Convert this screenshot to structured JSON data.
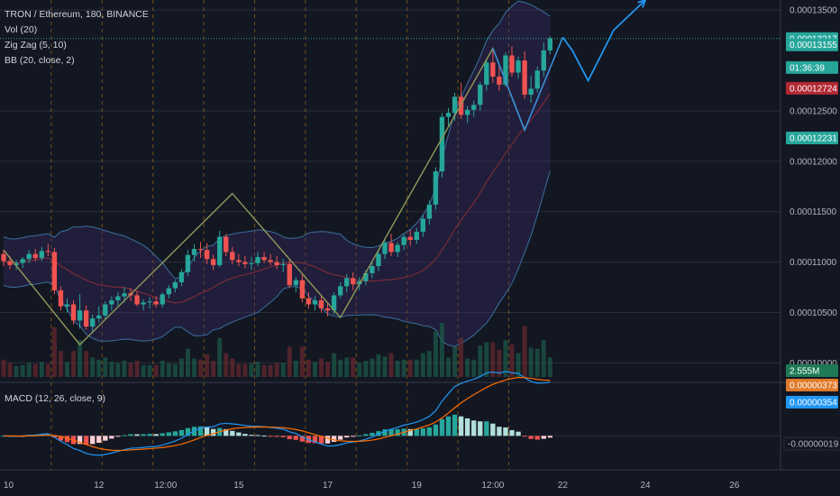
{
  "chart_data": [
    {
      "type": "candlestick",
      "title": "TRON / Ethereum, 180, BINANCE",
      "indicators": [
        "Vol (20)",
        "Zig Zag (5, 10)",
        "BB (20, close, 2)"
      ],
      "x_tick_labels": [
        "10",
        "12",
        "12:00",
        "15",
        "17",
        "19",
        "12:00",
        "22",
        "24",
        "26"
      ],
      "y_tick_labels": [
        "0.00013500",
        "0.00012500",
        "0.00012000",
        "0.00011500",
        "0.00011000",
        "0.00010500",
        "0.00010000"
      ],
      "y_ticks": [
        0.000135,
        0.000125,
        0.00012,
        0.000115,
        0.00011,
        0.000105,
        0.0001
      ],
      "ylim": [
        9.86e-05,
        0.000136
      ],
      "price_badges": [
        {
          "text": "0.00013217",
          "value": 0.00013217,
          "color": "#26a69a"
        },
        {
          "text": "0.00013155",
          "value": 0.00013155,
          "color": "#26a69a"
        },
        {
          "text": "01:36:39",
          "value": 0.0001293,
          "color": "#26a69a"
        },
        {
          "text": "0.00012724",
          "value": 0.00012724,
          "color": "#b22833"
        },
        {
          "text": "0.00012231",
          "value": 0.00012231,
          "color": "#26a69a"
        }
      ],
      "volume_badge": "2.555M",
      "last_price": 0.00013217,
      "candles_ohlc": [
        [
          0.0001108,
          0.0001112,
          0.0001096,
          0.0001101
        ],
        [
          0.0001101,
          0.0001106,
          0.0001093,
          0.0001097
        ],
        [
          0.0001097,
          0.0001102,
          0.0001092,
          0.0001099
        ],
        [
          0.0001099,
          0.0001105,
          0.0001094,
          0.0001103
        ],
        [
          0.0001103,
          0.0001112,
          0.0001099,
          0.0001108
        ],
        [
          0.0001108,
          0.0001113,
          0.0001101,
          0.0001104
        ],
        [
          0.0001104,
          0.0001115,
          0.0001101,
          0.0001111
        ],
        [
          0.0001111,
          0.0001118,
          0.0001106,
          0.000111
        ],
        [
          0.000111,
          0.0001114,
          0.0001068,
          0.0001072
        ],
        [
          0.0001072,
          0.0001076,
          0.0001052,
          0.0001056
        ],
        [
          0.0001056,
          0.0001064,
          0.000105,
          0.0001058
        ],
        [
          0.0001058,
          0.0001062,
          0.0001038,
          0.0001042
        ],
        [
          0.0001042,
          0.0001068,
          0.0001034,
          0.0001052
        ],
        [
          0.0001052,
          0.0001057,
          0.0001033,
          0.0001036
        ],
        [
          0.0001036,
          0.0001048,
          0.000103,
          0.0001044
        ],
        [
          0.0001044,
          0.0001056,
          0.000104,
          0.0001047
        ],
        [
          0.0001047,
          0.0001061,
          0.0001043,
          0.0001058
        ],
        [
          0.0001058,
          0.0001066,
          0.0001052,
          0.0001062
        ],
        [
          0.0001062,
          0.000107,
          0.0001057,
          0.0001066
        ],
        [
          0.0001066,
          0.0001075,
          0.000106,
          0.0001069
        ],
        [
          0.0001069,
          0.0001074,
          0.0001061,
          0.0001067
        ],
        [
          0.0001067,
          0.0001071,
          0.0001056,
          0.0001058
        ],
        [
          0.0001058,
          0.0001063,
          0.0001052,
          0.000106
        ],
        [
          0.000106,
          0.0001065,
          0.0001054,
          0.0001061
        ],
        [
          0.0001061,
          0.0001066,
          0.0001055,
          0.0001058
        ],
        [
          0.0001058,
          0.000107,
          0.0001055,
          0.0001068
        ],
        [
          0.0001068,
          0.0001077,
          0.0001064,
          0.0001074
        ],
        [
          0.0001074,
          0.0001082,
          0.000107,
          0.000108
        ],
        [
          0.000108,
          0.0001093,
          0.0001076,
          0.000109
        ],
        [
          0.000109,
          0.0001112,
          0.0001086,
          0.0001107
        ],
        [
          0.0001107,
          0.0001118,
          0.0001101,
          0.0001113
        ],
        [
          0.0001113,
          0.000112,
          0.0001104,
          0.0001112
        ],
        [
          0.0001112,
          0.0001119,
          0.0001098,
          0.0001103
        ],
        [
          0.0001103,
          0.0001107,
          0.0001092,
          0.0001097
        ],
        [
          0.0001097,
          0.0001131,
          0.0001095,
          0.0001125
        ],
        [
          0.0001125,
          0.0001128,
          0.0001106,
          0.000111
        ],
        [
          0.000111,
          0.0001115,
          0.0001098,
          0.0001102
        ],
        [
          0.0001102,
          0.0001108,
          0.0001096,
          0.00011
        ],
        [
          0.00011,
          0.0001106,
          0.0001094,
          0.0001098
        ],
        [
          0.0001098,
          0.0001105,
          0.0001092,
          0.0001099
        ],
        [
          0.0001099,
          0.000111,
          0.0001096,
          0.0001105
        ],
        [
          0.0001105,
          0.000111,
          0.0001099,
          0.0001102
        ],
        [
          0.0001102,
          0.0001108,
          0.0001097,
          0.00011
        ],
        [
          0.00011,
          0.0001106,
          0.0001093,
          0.0001097
        ],
        [
          0.0001097,
          0.0001103,
          0.000109,
          0.0001098
        ],
        [
          0.0001098,
          0.0001102,
          0.0001074,
          0.0001077
        ],
        [
          0.0001077,
          0.0001085,
          0.000107,
          0.0001082
        ],
        [
          0.0001082,
          0.0001088,
          0.000106,
          0.0001064
        ],
        [
          0.0001064,
          0.000107,
          0.0001054,
          0.0001058
        ],
        [
          0.0001058,
          0.0001066,
          0.0001052,
          0.0001062
        ],
        [
          0.0001062,
          0.0001067,
          0.000105,
          0.0001054
        ],
        [
          0.0001054,
          0.000106,
          0.0001046,
          0.0001052
        ],
        [
          0.0001052,
          0.000107,
          0.0001048,
          0.0001067
        ],
        [
          0.0001067,
          0.000108,
          0.0001064,
          0.0001076
        ],
        [
          0.0001076,
          0.0001088,
          0.000107,
          0.0001084
        ],
        [
          0.0001084,
          0.000109,
          0.0001072,
          0.0001078
        ],
        [
          0.0001078,
          0.0001085,
          0.0001072,
          0.0001081
        ],
        [
          0.0001081,
          0.0001092,
          0.0001077,
          0.0001089
        ],
        [
          0.0001089,
          0.0001101,
          0.0001084,
          0.0001096
        ],
        [
          0.0001096,
          0.0001112,
          0.0001091,
          0.0001108
        ],
        [
          0.0001108,
          0.0001122,
          0.0001103,
          0.0001119
        ],
        [
          0.0001119,
          0.0001128,
          0.0001106,
          0.000111
        ],
        [
          0.000111,
          0.000112,
          0.0001105,
          0.0001117
        ],
        [
          0.0001117,
          0.0001128,
          0.0001112,
          0.0001125
        ],
        [
          0.0001125,
          0.0001132,
          0.0001116,
          0.0001122
        ],
        [
          0.0001122,
          0.0001134,
          0.0001118,
          0.000113
        ],
        [
          0.000113,
          0.0001147,
          0.0001125,
          0.0001143
        ],
        [
          0.0001143,
          0.0001161,
          0.0001137,
          0.0001157
        ],
        [
          0.0001157,
          0.0001194,
          0.0001152,
          0.000119
        ],
        [
          0.000119,
          0.0001248,
          0.0001184,
          0.0001244
        ],
        [
          0.0001244,
          0.0001253,
          0.0001235,
          0.0001248
        ],
        [
          0.0001248,
          0.0001268,
          0.000124,
          0.0001264
        ],
        [
          0.0001264,
          0.0001278,
          0.0001242,
          0.0001246
        ],
        [
          0.0001246,
          0.0001255,
          0.0001238,
          0.0001251
        ],
        [
          0.0001251,
          0.000126,
          0.0001244,
          0.0001256
        ],
        [
          0.0001256,
          0.0001279,
          0.000125,
          0.0001276
        ],
        [
          0.0001276,
          0.0001302,
          0.000127,
          0.0001298
        ],
        [
          0.0001298,
          0.000131,
          0.0001278,
          0.0001284
        ],
        [
          0.0001284,
          0.0001295,
          0.000127,
          0.0001276
        ],
        [
          0.0001276,
          0.0001308,
          0.0001274,
          0.0001305
        ],
        [
          0.0001305,
          0.0001314,
          0.0001284,
          0.0001288
        ],
        [
          0.0001288,
          0.0001304,
          0.0001282,
          0.00013
        ],
        [
          0.00013,
          0.0001309,
          0.0001262,
          0.0001266
        ],
        [
          0.0001266,
          0.0001285,
          0.0001258,
          0.0001272
        ],
        [
          0.0001272,
          0.0001294,
          0.0001268,
          0.000129
        ],
        [
          0.000129,
          0.0001318,
          0.0001284,
          0.000131
        ],
        [
          0.000131,
          0.0001324,
          0.0001306,
          0.0001322
        ]
      ],
      "volume_ylim": [
        0,
        5e-06
      ],
      "zigzag_points": [
        [
          0,
          0.0001112
        ],
        [
          12,
          0.0001018
        ],
        [
          36,
          0.0001168
        ],
        [
          53,
          0.0001045
        ],
        [
          77,
          0.0001312
        ],
        [
          82,
          0.0001231
        ],
        [
          88,
          0.0001323
        ]
      ],
      "projection_points": [
        [
          88,
          0.0001323
        ],
        [
          89.5,
          0.000131
        ],
        [
          92,
          0.000128
        ],
        [
          96,
          0.000133
        ],
        [
          101,
          0.000136
        ]
      ],
      "macd_badges": [
        {
          "text": "0.00000373",
          "value": 3.73e-06,
          "color": "#e07a2a"
        },
        {
          "text": "0.00000354",
          "value": 3.54e-06,
          "color": "#2196f3"
        },
        {
          "text": "-0.00000019",
          "value": -1.9e-07,
          "color": "#131722"
        }
      ],
      "macd_title": "MACD (12, 26, close, 9)",
      "macd_ylim": [
        -2.6e-06,
        4.2e-06
      ]
    }
  ]
}
